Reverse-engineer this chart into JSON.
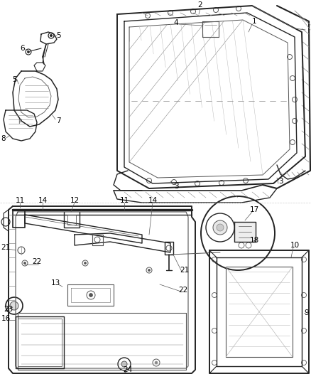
{
  "bg_color": "#ffffff",
  "fig_width": 4.38,
  "fig_height": 5.33,
  "dpi": 100,
  "lc": "#222222",
  "lc2": "#555555",
  "lc3": "#888888",
  "fs": 7.5
}
